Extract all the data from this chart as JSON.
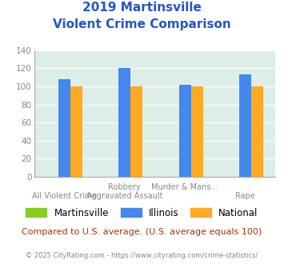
{
  "title_line1": "2019 Martinsville",
  "title_line2": "Violent Crime Comparison",
  "top_labels": [
    "",
    "Robbery",
    "Murder & Mans...",
    ""
  ],
  "bottom_labels": [
    "All Violent Crime",
    "Aggravated Assault",
    "",
    "Rape"
  ],
  "groups": [
    {
      "name": "Martinsville",
      "color": "#88cc22",
      "values": [
        0,
        0,
        0,
        0
      ]
    },
    {
      "name": "Illinois",
      "color": "#4488ee",
      "values": [
        108,
        120,
        102,
        113
      ]
    },
    {
      "name": "National",
      "color": "#ffaa22",
      "values": [
        100,
        100,
        100,
        100
      ]
    }
  ],
  "ylim": [
    0,
    140
  ],
  "yticks": [
    0,
    20,
    40,
    60,
    80,
    100,
    120,
    140
  ],
  "bg_color": "#ddeee8",
  "grid_color": "#ffffff",
  "footnote": "Compared to U.S. average. (U.S. average equals 100)",
  "copyright": "© 2025 CityRating.com - https://www.cityrating.com/crime-statistics/",
  "title_color": "#2255cc",
  "footnote_color": "#aa3300",
  "copyright_color": "#888888",
  "label_color": "#888888"
}
